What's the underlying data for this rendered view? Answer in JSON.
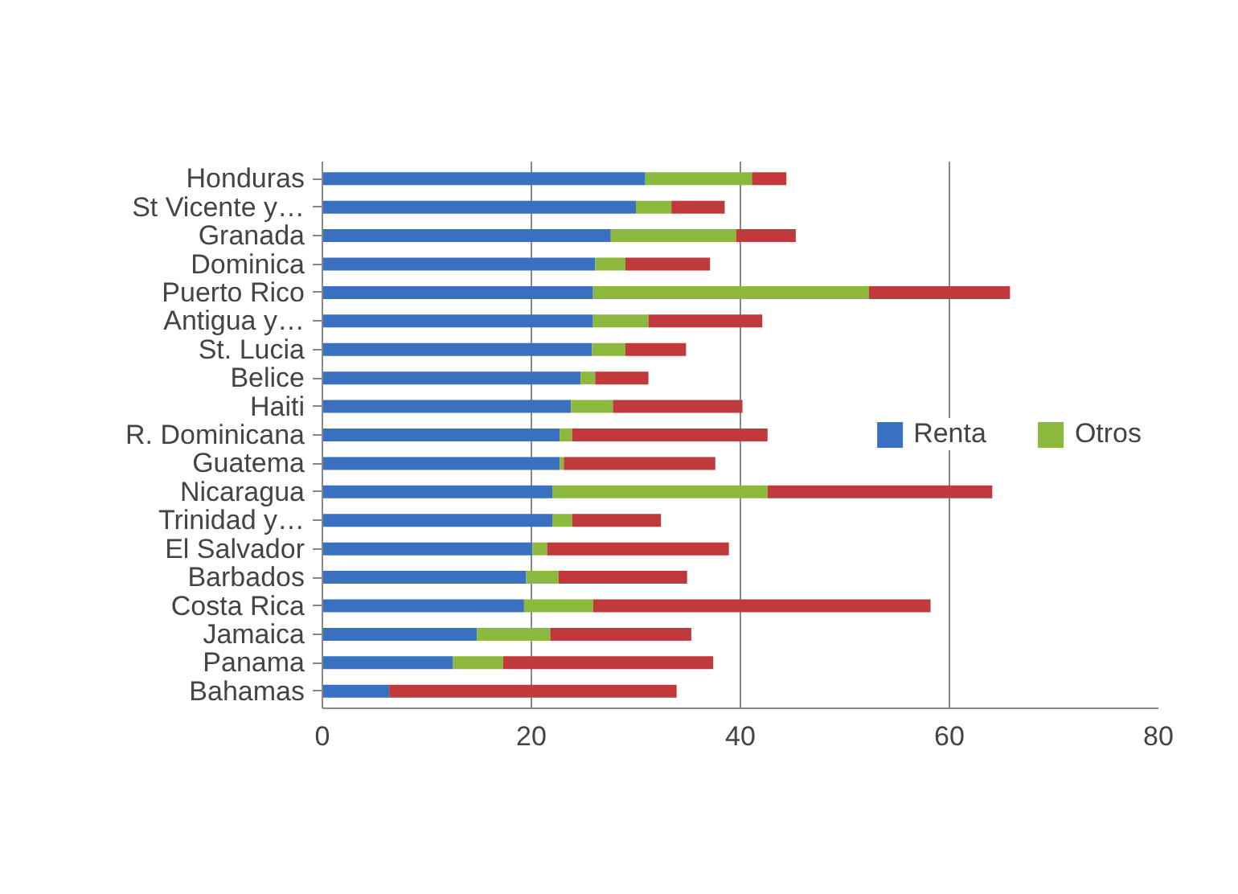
{
  "chart_data": {
    "type": "bar",
    "orientation": "horizontal",
    "stacked": true,
    "categories": [
      "Honduras",
      "St Vicente y…",
      "Granada",
      "Dominica",
      "Puerto Rico",
      "Antigua y…",
      "St. Lucia",
      "Belice",
      "Haiti",
      "R. Dominicana",
      "Guatema",
      "Nicaragua",
      "Trinidad y…",
      "El Salvador",
      "Barbados",
      "Costa Rica",
      "Jamaica",
      "Panama",
      "Bahamas"
    ],
    "series": [
      {
        "name": "Renta",
        "color": "#3a70c0",
        "values": [
          30.9,
          30.0,
          27.6,
          26.1,
          25.9,
          25.9,
          25.8,
          24.7,
          23.8,
          22.7,
          22.7,
          22.0,
          22.0,
          20.1,
          19.5,
          19.3,
          14.8,
          12.5,
          6.4
        ]
      },
      {
        "name": "Otros",
        "color": "#8cb83e",
        "values": [
          10.2,
          3.4,
          12.0,
          2.9,
          26.4,
          5.3,
          3.2,
          1.4,
          4.0,
          1.2,
          0.4,
          20.6,
          1.9,
          1.4,
          3.1,
          6.6,
          7.0,
          4.8,
          0
        ]
      },
      {
        "color": "#c0393b",
        "values": [
          3.3,
          5.1,
          5.7,
          8.1,
          13.5,
          10.9,
          5.8,
          5.1,
          12.4,
          18.7,
          14.5,
          21.5,
          8.5,
          17.4,
          12.3,
          32.3,
          13.5,
          20.1,
          27.5
        ]
      }
    ],
    "xlim": [
      0,
      80
    ],
    "xticks": [
      0,
      20,
      40,
      60,
      80
    ],
    "grid": "x",
    "legend": "right"
  }
}
